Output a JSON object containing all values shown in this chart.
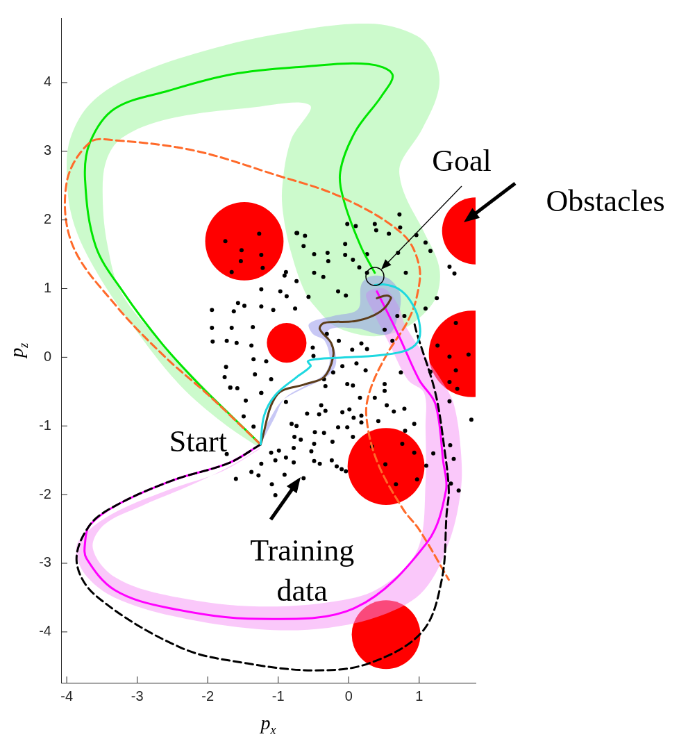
{
  "chart_data": {
    "type": "line",
    "xlabel": "p$_{x}$",
    "ylabel": "p$_{z}$",
    "xlim": [
      -4.08,
      1.8
    ],
    "ylim": [
      -4.74,
      4.94
    ],
    "xticks": [
      -4,
      -3,
      -2,
      -1,
      0,
      1
    ],
    "yticks": [
      -4,
      -3,
      -2,
      -1,
      0,
      1,
      2,
      3,
      4
    ],
    "annotations": [
      "Goal",
      "Obstacles",
      {
        "text": "Start",
        "x": -1.25,
        "y": -1.27
      },
      {
        "text": "Training data",
        "x": -0.68,
        "y": -1.75
      }
    ],
    "series": [
      {
        "type": "bubble",
        "color": "#ff0000",
        "x": [
          -1.48,
          -0.88,
          1.8,
          1.75,
          0.53,
          0.53
        ],
        "values": [
          1.69,
          0.21,
          1.84,
          0.05,
          -1.59,
          -4.04
        ],
        "sizes": [
          0.82,
          0.21,
          0.6,
          1,
          0.79,
          0.63
        ]
      },
      {
        "type": "area",
        "color": "#ccfacc",
        "x": [
          -1.28,
          -1.79,
          -2.39,
          -2.98,
          -3.57,
          -3.92,
          -4.0,
          -3.9,
          -3.63,
          -3.1,
          -2.19,
          -1.05,
          0.28,
          0.97,
          1.22,
          1.28,
          1.04,
          0.75,
          0.72,
          0.81,
          1.07,
          1.28,
          1.26,
          1.09,
          0.77,
          0.44,
          0.11,
          -0.22,
          -0.41,
          -0.61,
          -0.81,
          -0.93,
          -0.94,
          -0.82,
          -0.55,
          -1.43,
          -2.56,
          -3.21,
          -3.44,
          -3.49,
          -3.42,
          -3.22,
          -2.68,
          -1.99,
          -1.5,
          -1.25
        ],
        "values": [
          -1.31,
          -0.95,
          -0.41,
          0.34,
          1.23,
          2.02,
          2.86,
          3.32,
          3.73,
          4.08,
          4.42,
          4.7,
          4.86,
          4.68,
          4.35,
          3.92,
          3.32,
          2.86,
          2.66,
          2.33,
          1.82,
          1.33,
          0.93,
          0.66,
          0.41,
          0.31,
          0.34,
          0.47,
          0.66,
          0.93,
          1.5,
          2.09,
          2.51,
          3.16,
          3.67,
          3.63,
          3.47,
          3.2,
          2.86,
          2.33,
          1.62,
          0.93,
          0.24,
          -0.5,
          -1.0,
          -1.27
        ]
      },
      {
        "type": "area",
        "color": "#fac8fa",
        "x": [
          -1.28,
          -1.79,
          -2.58,
          -3.37,
          -3.82,
          -3.86,
          -3.71,
          -3.32,
          -2.49,
          -1.27,
          -0.29,
          0.54,
          1.07,
          1.42,
          1.59,
          1.59,
          1.49,
          1.33,
          1.09,
          0.8,
          0.7,
          0.5,
          0.25,
          0.35,
          0.57,
          0.84,
          1.07,
          1.09,
          1.09,
          1.0,
          0.66,
          0.09,
          -1.27,
          -2.56,
          -3.32,
          -3.63,
          -3.47,
          -2.95,
          -2.19,
          -1.6,
          -1.25
        ],
        "values": [
          -1.35,
          -1.66,
          -1.94,
          -2.29,
          -2.66,
          -2.89,
          -3.2,
          -3.5,
          -3.77,
          -3.96,
          -3.94,
          -3.73,
          -3.39,
          -2.7,
          -1.94,
          -1.35,
          -0.68,
          -0.36,
          0.01,
          0.47,
          0.76,
          1.0,
          0.93,
          0.66,
          0.21,
          -0.33,
          -0.52,
          -1.02,
          -1.84,
          -2.74,
          -3.2,
          -3.5,
          -3.63,
          -3.47,
          -3.2,
          -2.78,
          -2.44,
          -2.17,
          -1.84,
          -1.54,
          -1.31
        ]
      },
      {
        "type": "area",
        "color": "#c8c8f5",
        "x": [
          -1.25,
          -1.06,
          -0.91,
          -0.61,
          -0.36,
          -0.27,
          -0.34,
          -0.51,
          -0.56,
          -0.22,
          0.13,
          0.18,
          0.31,
          0.54,
          0.7,
          0.74,
          0.7,
          0.6,
          0.44,
          0.11,
          -0.29,
          -0.19,
          -0.19,
          -0.32,
          -0.71,
          -0.96,
          -1.15
        ],
        "values": [
          -1.27,
          -0.9,
          -0.6,
          -0.41,
          -0.26,
          -0.06,
          0.24,
          0.34,
          0.49,
          0.6,
          0.7,
          1.06,
          1.18,
          1.16,
          1.0,
          0.83,
          0.6,
          0.36,
          0.33,
          0.42,
          0.39,
          0.07,
          -0.13,
          -0.29,
          -0.49,
          -0.65,
          -0.95
        ]
      },
      {
        "type": "scatter",
        "color": "#000000",
        "marker": "circle",
        "x": [
          -1.75,
          -1.27,
          -1.52,
          -1.24,
          -1.53,
          -1.66,
          -1.22,
          -0.74,
          -0.62,
          -0.64,
          -0.49,
          -0.3,
          -0.05,
          0.1,
          0.37,
          0.57,
          0.72,
          0.96,
          1.09,
          1.16,
          0.7,
          0.26,
          0.06,
          -0.05,
          -0.29,
          -0.49,
          -0.74,
          -0.89,
          -0.91,
          -1.24,
          -0.97,
          -0.88,
          -1.57,
          -1.48,
          -1.63,
          -1.94,
          -1.24,
          -1.07,
          -0.76,
          -0.57,
          -0.36,
          -0.15,
          -0.04,
          0.15,
          0.26,
          0.81,
          1.25,
          1.09,
          1.43,
          1.5,
          -1.94,
          -1.66,
          -1.36,
          -1.93,
          -1.73,
          -1.59,
          -1.38,
          -1.35,
          -1.17,
          -1.74,
          -1.33,
          -1.76,
          -1.1,
          -1.68,
          -1.58,
          -1.24,
          -0.51,
          -0.5,
          -0.31,
          -0.14,
          0.05,
          0.18,
          0.26,
          0.51,
          0.69,
          0.79,
          0.62,
          -0.09,
          0.11,
          0.24,
          -0.22,
          -0.35,
          -0.02,
          0.51,
          0.74,
          1.16,
          1.43,
          1.52,
          1.26,
          1.43,
          1.7,
          1.52,
          -1.68,
          -1.24,
          -1.46,
          -1.49,
          -1.35,
          -1.73,
          -1.6,
          -1.38,
          -1.28,
          -1.24,
          -1.09,
          -1.04,
          -1.1,
          -1.04,
          -0.99,
          -0.89,
          -0.81,
          -0.74,
          -0.77,
          -0.68,
          -0.78,
          -0.89,
          -0.78,
          -0.91,
          -0.64,
          -0.59,
          -0.48,
          -0.49,
          -0.53,
          -0.49,
          -0.41,
          -0.39,
          -0.33,
          -0.42,
          -0.23,
          -0.24,
          -0.35,
          -0.15,
          -0.09,
          0.01,
          0.07,
          0.18,
          0.18,
          -0.02,
          0.06,
          -0.17,
          -0.1,
          -0.04,
          -0.33,
          0.06,
          0.16,
          0.37,
          0.51,
          0.54,
          0.42,
          0.64,
          0.79,
          0.93,
          0.8,
          0.76,
          0.93,
          0.97,
          0.67,
          0.33,
          0.52,
          1.1,
          1.2,
          1.43,
          1.54,
          1.74,
          1.44,
          1.49,
          1.56,
          1.45,
          -0.02,
          0.39,
          0.73,
          -0.73
        ],
        "values": [
          1.69,
          1.8,
          1.56,
          1.49,
          1.4,
          1.24,
          1.3,
          1.81,
          1.77,
          1.62,
          1.5,
          1.52,
          1.65,
          1.91,
          1.94,
          1.8,
          2.08,
          1.78,
          1.67,
          1.55,
          1.52,
          1.5,
          1.42,
          1.49,
          1.4,
          1.23,
          1.11,
          1.24,
          1.19,
          0.99,
          0.96,
          0.89,
          0.79,
          0.75,
          0.67,
          0.69,
          0.74,
          0.69,
          0.71,
          0.88,
          1.17,
          0.96,
          0.9,
          1.31,
          1.23,
          1.23,
          0.86,
          0.71,
          1.32,
          1.22,
          0.43,
          0.43,
          0.44,
          0.23,
          0.24,
          0.21,
          0.17,
          -0.03,
          -0.06,
          -0.14,
          -0.25,
          -0.29,
          -0.32,
          -0.44,
          -0.45,
          -0.52,
          0.14,
          0.02,
          0.34,
          0.24,
          0.11,
          0.2,
          0.12,
          0.4,
          0.6,
          0.6,
          0.24,
          -0.13,
          -0.09,
          -0.19,
          -0.22,
          -0.32,
          -0.39,
          -0.39,
          -0.22,
          -0.21,
          -0.36,
          -0.19,
          0.17,
          0.01,
          0.04,
          0.5,
          -0.44,
          -0.52,
          -0.63,
          -0.86,
          -1.01,
          -1.41,
          -1.77,
          -1.67,
          -1.72,
          -1.55,
          -1.85,
          -2.01,
          -1.39,
          -1.5,
          -1.36,
          -0.65,
          -0.97,
          -1.0,
          -1.16,
          -1.2,
          -1.32,
          -1.46,
          -1.53,
          -1.71,
          -1.76,
          -0.82,
          -1.09,
          -1.26,
          -1.37,
          -1.51,
          -1.55,
          -0.7,
          -0.78,
          -0.83,
          -1.23,
          -1.5,
          -1.1,
          -1.02,
          -0.8,
          -0.76,
          -0.88,
          -0.85,
          -0.95,
          -1.02,
          -1.16,
          -1.59,
          -1.63,
          -1.66,
          -0.42,
          -0.41,
          -0.59,
          -0.59,
          -0.49,
          -0.7,
          -0.93,
          -0.79,
          -0.75,
          -0.97,
          -1.07,
          -1.26,
          -1.39,
          -1.78,
          -1.85,
          -1.3,
          -1.56,
          -1.58,
          -1.4,
          -0.64,
          -0.46,
          -0.91,
          -1.28,
          -1.48,
          -1.94,
          -1.84,
          1.94,
          1.85,
          1.89,
          1.81
        ]
      },
      {
        "color": "#00e600",
        "line_style": "solid",
        "x": [
          -1.25,
          -1.7,
          -2.1,
          -2.65,
          -3.2,
          -3.59,
          -3.74,
          -3.67,
          -3.32,
          -2.56,
          -1.66,
          -0.67,
          0.28,
          0.62,
          0.47,
          0.09,
          -0.12,
          -0.06,
          0.17,
          0.37
        ],
        "values": [
          -1.27,
          -0.82,
          -0.42,
          0.2,
          0.95,
          1.62,
          2.59,
          3.13,
          3.62,
          3.88,
          4.12,
          4.23,
          4.27,
          4.12,
          3.81,
          3.28,
          2.7,
          2.25,
          1.62,
          1.23
        ]
      },
      {
        "color": "#ff6a2a",
        "line_style": "dashed",
        "x": [
          -1.25,
          -1.99,
          -2.6,
          -3.3,
          -3.92,
          -4.0,
          -3.67,
          -3.32,
          -2.19,
          -1.05,
          -0.1,
          0.77,
          1.0,
          0.97,
          0.84,
          0.54,
          0.31,
          0.25,
          0.4,
          0.77,
          1.0,
          1.42
        ],
        "values": [
          -1.27,
          -0.55,
          0.0,
          0.75,
          1.64,
          2.55,
          3.13,
          3.16,
          3.01,
          2.66,
          2.33,
          1.79,
          1.33,
          0.9,
          0.53,
          0.04,
          -0.46,
          -0.85,
          -1.51,
          -2.21,
          -2.51,
          -3.24
        ]
      },
      {
        "color": "#ff00ff",
        "line_style": "solid",
        "x": [
          0.4,
          0.7,
          1.0,
          1.23,
          1.34,
          1.38,
          1.11,
          0.09,
          -1.27,
          -2.56,
          -3.32,
          -3.72,
          -3.74,
          -3.67,
          -3.27,
          -2.49,
          -1.7,
          -1.25
        ],
        "values": [
          0.96,
          0.34,
          -0.33,
          -0.68,
          -1.51,
          -1.94,
          -2.7,
          -3.65,
          -3.81,
          -3.65,
          -3.39,
          -2.93,
          -2.7,
          -2.44,
          -2.14,
          -1.79,
          -1.54,
          -1.27
        ]
      },
      {
        "color": "#000000",
        "line_style": "dashed",
        "x": [
          -1.25,
          -1.7,
          -2.49,
          -3.27,
          -3.67,
          -3.86,
          -3.59,
          -2.38,
          -1.43,
          -0.48,
          0.28,
          1.04,
          1.32,
          1.39,
          1.42,
          1.36,
          1.23,
          0.97,
          0.93
        ],
        "values": [
          -1.27,
          -1.54,
          -1.79,
          -2.14,
          -2.44,
          -2.97,
          -3.47,
          -4.23,
          -4.46,
          -4.56,
          -4.46,
          -4.0,
          -3.24,
          -2.27,
          -1.94,
          -1.35,
          -0.52,
          0.34,
          0.5
        ]
      },
      {
        "color": "#5c3d1a",
        "line_style": "solid",
        "x": [
          -1.25,
          -1.02,
          -0.61,
          -0.35,
          -0.22,
          -0.25,
          -0.41,
          -0.35,
          0.11,
          0.44,
          0.6,
          0.54,
          0.4
        ],
        "values": [
          -1.27,
          -0.55,
          -0.39,
          -0.29,
          0.01,
          0.21,
          0.41,
          0.5,
          0.53,
          0.66,
          0.86,
          0.9,
          0.86
        ]
      },
      {
        "color": "#1ed8e0",
        "line_style": "solid",
        "x": [
          -1.25,
          -1.2,
          -1.04,
          -0.74,
          -0.54,
          -0.58,
          -0.48,
          -0.22,
          0.44,
          0.84,
          1.0,
          0.99,
          0.87,
          0.7,
          0.5,
          0.37
        ],
        "values": [
          -1.27,
          -0.85,
          -0.55,
          -0.29,
          -0.13,
          -0.06,
          -0.03,
          -0.01,
          0.03,
          0.11,
          0.27,
          0.56,
          0.83,
          1.0,
          1.06,
          1.05
        ]
      }
    ]
  }
}
